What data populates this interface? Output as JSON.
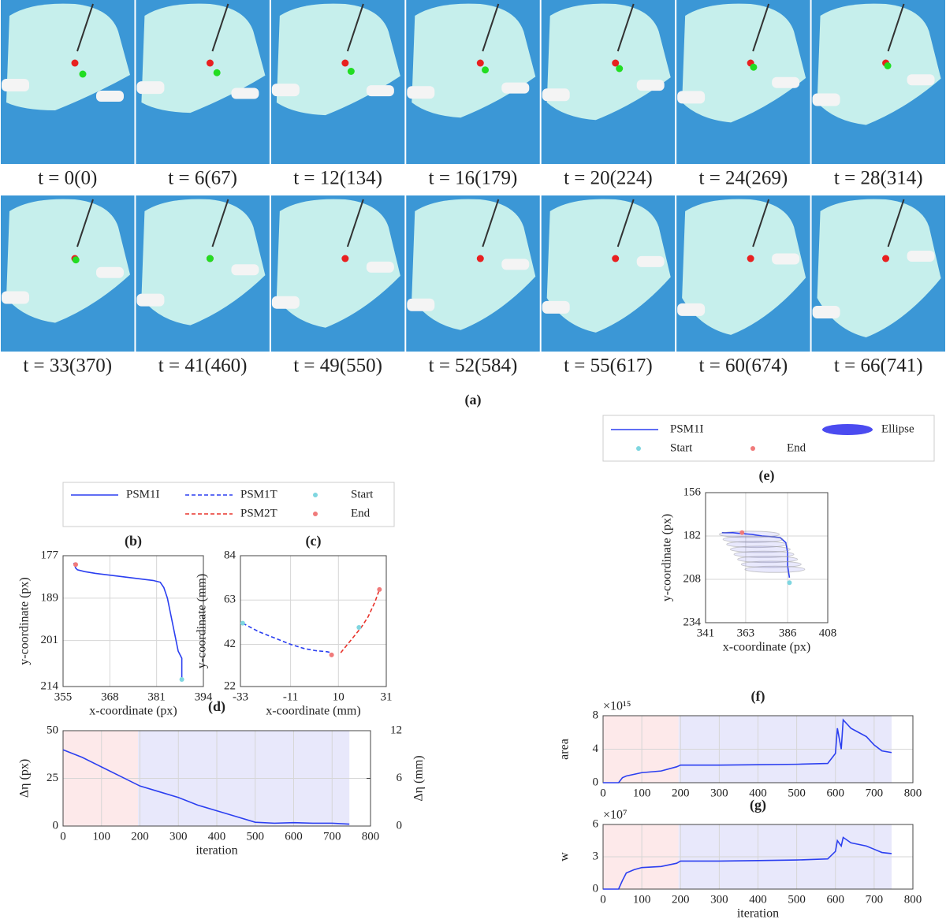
{
  "figure": {
    "frames": [
      "t = 0(0)",
      "t = 6(67)",
      "t = 12(134)",
      "t = 16(179)",
      "t = 20(224)",
      "t = 24(269)",
      "t = 28(314)",
      "t = 33(370)",
      "t = 41(460)",
      "t = 49(550)",
      "t = 52(584)",
      "t = 55(617)",
      "t = 60(674)",
      "t = 66(741)"
    ],
    "panel_a_label": "(a)"
  },
  "chart_data": [
    {
      "type": "line",
      "title": "(b)",
      "x_label": "x-coordinate (px)",
      "y_label": "y-coordinate (px)",
      "xlim": [
        355,
        394
      ],
      "xticks": [
        355,
        368,
        381,
        394
      ],
      "ylim": [
        214,
        177
      ],
      "yticks": [
        177,
        189,
        201,
        214
      ],
      "grid": true,
      "series": [
        {
          "name": "PSM1I",
          "color": "#2b3ff0",
          "style": "solid",
          "x": [
            358,
            358.5,
            359,
            361,
            364,
            368,
            372,
            376,
            380,
            382,
            383,
            384,
            385,
            386,
            387,
            388,
            388,
            388
          ],
          "values": [
            179,
            180.5,
            181,
            181.5,
            182,
            182.5,
            183,
            183.5,
            184,
            184.5,
            186,
            189,
            194,
            199,
            204,
            206,
            209,
            212
          ]
        },
        {
          "name": "Start",
          "color": "#7fd6e0",
          "style": "points",
          "x": [
            388
          ],
          "values": [
            212
          ]
        },
        {
          "name": "End",
          "color": "#f07a7a",
          "style": "points",
          "x": [
            358.5
          ],
          "values": [
            179.5
          ]
        }
      ]
    },
    {
      "type": "line",
      "title": "(c)",
      "x_label": "x-coordinate (mm)",
      "y_label": "y-coordinate (mm)",
      "xlim": [
        -33,
        31
      ],
      "xticks": [
        -33,
        -11,
        10,
        31
      ],
      "ylim": [
        22,
        84
      ],
      "yticks": [
        22,
        42,
        63,
        84
      ],
      "grid": true,
      "series": [
        {
          "name": "PSM1T",
          "color": "#2b3ff0",
          "style": "dashed",
          "x": [
            -32,
            -25,
            -18,
            -11,
            -5,
            0,
            5,
            7
          ],
          "values": [
            52,
            48,
            45,
            42,
            40,
            39,
            38.5,
            38
          ]
        },
        {
          "name": "PSM2T",
          "color": "#e8332b",
          "style": "dashed",
          "x": [
            11,
            14,
            17,
            20,
            23,
            26,
            28
          ],
          "values": [
            38,
            42,
            46,
            50,
            55,
            62,
            68
          ]
        },
        {
          "color": "#7fd6e0",
          "style": "points",
          "x": [
            -32,
            19
          ],
          "values": [
            52,
            50
          ]
        },
        {
          "color": "#f07a7a",
          "style": "points",
          "x": [
            7,
            28
          ],
          "values": [
            37,
            68
          ]
        }
      ]
    },
    {
      "type": "line",
      "title": "(d)",
      "x_label": "iteration",
      "y_label": "Δη (px)",
      "y2_label": "Δη (mm)",
      "xlim": [
        0,
        800
      ],
      "xticks": [
        0,
        100,
        200,
        300,
        400,
        500,
        600,
        700,
        800
      ],
      "ylim": [
        0,
        50
      ],
      "yticks": [
        0,
        25,
        50
      ],
      "y2lim": [
        0,
        12
      ],
      "y2ticks": [
        0,
        6,
        12
      ],
      "grid": true,
      "spans": [
        {
          "x": [
            0,
            195
          ],
          "color": "#fde9ea"
        },
        {
          "x": [
            195,
            745
          ],
          "color": "#e8e8fb"
        }
      ],
      "series": [
        {
          "color": "#2b3ff0",
          "style": "solid",
          "x": [
            0,
            50,
            100,
            150,
            200,
            250,
            300,
            350,
            400,
            450,
            500,
            550,
            600,
            650,
            700,
            745
          ],
          "values": [
            40,
            36,
            31,
            26,
            21,
            18,
            15,
            11,
            8,
            5,
            2,
            1.5,
            1.8,
            1.5,
            1.5,
            1
          ]
        }
      ]
    },
    {
      "type": "line",
      "title": "(e)",
      "x_label": "x-coordinate (px)",
      "y_label": "y-coordinate (px)",
      "xlim": [
        341,
        408
      ],
      "xticks": [
        341,
        363,
        386,
        408
      ],
      "ylim": [
        234,
        156
      ],
      "yticks": [
        156,
        182,
        208,
        234
      ],
      "grid": true,
      "series": [
        {
          "name": "PSM1I",
          "color": "#2b3ff0",
          "style": "solid",
          "x": [
            350,
            356,
            360,
            366,
            372,
            378,
            382,
            385,
            386,
            386,
            387
          ],
          "values": [
            180,
            180,
            180.5,
            181,
            182,
            182.5,
            183,
            186,
            192,
            200,
            207
          ]
        },
        {
          "name": "Ellipse",
          "color": "#4b4bf0",
          "style": "ellipse",
          "x": [
            365,
            367,
            369,
            371,
            373,
            375,
            377,
            379
          ],
          "values": [
            181,
            184,
            187,
            190,
            193,
            196,
            199,
            202
          ]
        },
        {
          "name": "Start",
          "color": "#7fd6e0",
          "style": "points",
          "x": [
            387
          ],
          "values": [
            210
          ]
        },
        {
          "name": "End",
          "color": "#f07a7a",
          "style": "points",
          "x": [
            361
          ],
          "values": [
            180
          ]
        }
      ]
    },
    {
      "type": "line",
      "title": "(f)",
      "y_label": "area",
      "y_multiplier": "×10¹⁵",
      "xlim": [
        0,
        800
      ],
      "xticks": [
        0,
        100,
        200,
        300,
        400,
        500,
        600,
        700,
        800
      ],
      "ylim": [
        0,
        8
      ],
      "yticks": [
        0,
        4,
        8
      ],
      "grid": true,
      "spans": [
        {
          "x": [
            0,
            195
          ],
          "color": "#fde9ea"
        },
        {
          "x": [
            195,
            745
          ],
          "color": "#e8e8fb"
        }
      ],
      "series": [
        {
          "color": "#2b3ff0",
          "style": "solid",
          "x": [
            0,
            40,
            50,
            60,
            100,
            150,
            190,
            200,
            300,
            400,
            500,
            580,
            600,
            605,
            615,
            620,
            630,
            640,
            660,
            680,
            700,
            720,
            745
          ],
          "values": [
            0,
            0,
            0.6,
            0.8,
            1.2,
            1.4,
            1.9,
            2.1,
            2.1,
            2.15,
            2.2,
            2.3,
            3.5,
            6.5,
            4,
            7.5,
            7,
            6.5,
            6,
            5.5,
            4.5,
            3.8,
            3.6
          ]
        }
      ]
    },
    {
      "type": "line",
      "title": "(g)",
      "x_label": "iteration",
      "y_label": "w",
      "y_multiplier": "×10⁷",
      "xlim": [
        0,
        800
      ],
      "xticks": [
        0,
        100,
        200,
        300,
        400,
        500,
        600,
        700,
        800
      ],
      "ylim": [
        0,
        6
      ],
      "yticks": [
        0,
        3,
        6
      ],
      "grid": true,
      "spans": [
        {
          "x": [
            0,
            195
          ],
          "color": "#fde9ea"
        },
        {
          "x": [
            195,
            745
          ],
          "color": "#e8e8fb"
        }
      ],
      "series": [
        {
          "color": "#2b3ff0",
          "style": "solid",
          "x": [
            0,
            40,
            50,
            60,
            80,
            100,
            150,
            190,
            200,
            300,
            400,
            500,
            580,
            600,
            605,
            615,
            620,
            640,
            680,
            700,
            720,
            745
          ],
          "values": [
            0,
            0,
            0.8,
            1.5,
            1.8,
            2,
            2.1,
            2.4,
            2.6,
            2.6,
            2.65,
            2.7,
            2.8,
            3.5,
            4.5,
            4,
            4.8,
            4.3,
            4,
            3.7,
            3.4,
            3.3
          ]
        }
      ]
    }
  ]
}
